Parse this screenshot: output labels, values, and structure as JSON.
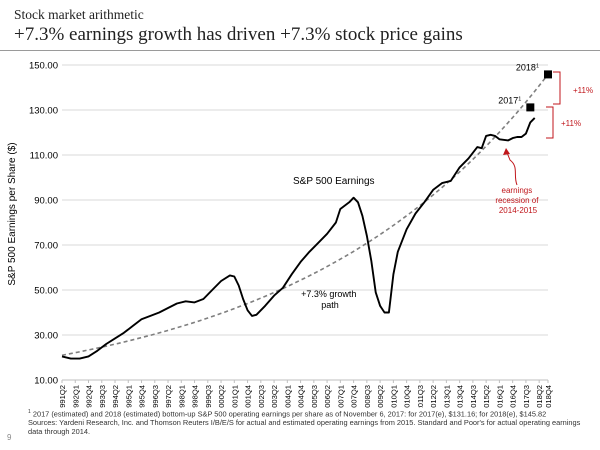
{
  "header": {
    "kicker": "Stock market arithmetic",
    "title": "+7.3% earnings growth has driven +7.3% stock price gains"
  },
  "chart_data": {
    "type": "line",
    "ylabel": "S&P 500 Earnings per Share  ($)",
    "ylim": [
      10,
      150
    ],
    "yticks": [
      10,
      30,
      50,
      70,
      90,
      110,
      130,
      150
    ],
    "ytick_labels": [
      "10.00",
      "30.00",
      "50.00",
      "70.00",
      "90.00",
      "110.00",
      "130.00",
      "150.00"
    ],
    "xticks": [
      "1991Q2",
      "1992Q1",
      "1992Q4",
      "1993Q3",
      "1994Q2",
      "1995Q1",
      "1995Q4",
      "1996Q3",
      "1997Q2",
      "1998Q1",
      "1998Q4",
      "1999Q3",
      "2000Q2",
      "2001Q1",
      "2001Q4",
      "2002Q3",
      "2003Q2",
      "2004Q1",
      "2004Q4",
      "2005Q3",
      "2006Q2",
      "2007Q1",
      "2007Q4",
      "2008Q3",
      "2009Q2",
      "2010Q1",
      "2010Q4",
      "2011Q3",
      "2012Q2",
      "2013Q1",
      "2013Q4",
      "2014Q3",
      "2015Q2",
      "2016Q1",
      "2016Q4",
      "2017Q3",
      "2018Q2",
      "2018Q4"
    ],
    "grid": "horizontal",
    "series": [
      {
        "name": "S&P 500 Earnings",
        "style": "solid",
        "color": "#000000",
        "points": [
          [
            "1991Q2",
            20.5
          ],
          [
            "1991Q4",
            19.5
          ],
          [
            "1992Q2",
            19.5
          ],
          [
            "1992Q4",
            20.5
          ],
          [
            "1993Q2",
            23
          ],
          [
            "1993Q4",
            26
          ],
          [
            "1994Q2",
            28.5
          ],
          [
            "1994Q4",
            31
          ],
          [
            "1995Q2",
            34
          ],
          [
            "1995Q4",
            37
          ],
          [
            "1996Q2",
            38.5
          ],
          [
            "1996Q4",
            40
          ],
          [
            "1997Q2",
            42
          ],
          [
            "1997Q4",
            44
          ],
          [
            "1998Q2",
            45
          ],
          [
            "1998Q4",
            44.5
          ],
          [
            "1999Q2",
            46
          ],
          [
            "1999Q4",
            50
          ],
          [
            "2000Q2",
            54
          ],
          [
            "2000Q4",
            56.5
          ],
          [
            "2001Q1",
            56
          ],
          [
            "2001Q2",
            52
          ],
          [
            "2001Q3",
            46
          ],
          [
            "2001Q4",
            41
          ],
          [
            "2002Q1",
            38.5
          ],
          [
            "2002Q2",
            39
          ],
          [
            "2002Q4",
            43
          ],
          [
            "2003Q2",
            47.5
          ],
          [
            "2003Q4",
            51
          ],
          [
            "2004Q2",
            57
          ],
          [
            "2004Q4",
            62.5
          ],
          [
            "2005Q2",
            67
          ],
          [
            "2005Q4",
            71
          ],
          [
            "2006Q2",
            75
          ],
          [
            "2006Q4",
            80
          ],
          [
            "2007Q1",
            86
          ],
          [
            "2007Q3",
            89
          ],
          [
            "2007Q4",
            91
          ],
          [
            "2008Q1",
            89
          ],
          [
            "2008Q2",
            83
          ],
          [
            "2008Q3",
            74
          ],
          [
            "2008Q4",
            63
          ],
          [
            "2009Q1",
            49
          ],
          [
            "2009Q2",
            43
          ],
          [
            "2009Q3",
            40
          ],
          [
            "2009Q4",
            40
          ],
          [
            "2010Q1",
            57
          ],
          [
            "2010Q2",
            67
          ],
          [
            "2010Q4",
            77
          ],
          [
            "2011Q2",
            84
          ],
          [
            "2011Q4",
            89
          ],
          [
            "2012Q2",
            94.5
          ],
          [
            "2012Q4",
            97.5
          ],
          [
            "2013Q2",
            98.5
          ],
          [
            "2013Q4",
            104.5
          ],
          [
            "2014Q2",
            108.5
          ],
          [
            "2014Q4",
            113.5
          ],
          [
            "2015Q1",
            113
          ],
          [
            "2015Q2",
            118.5
          ],
          [
            "2015Q3",
            119
          ],
          [
            "2015Q4",
            118.5
          ],
          [
            "2016Q1",
            117
          ],
          [
            "2016Q3",
            116.5
          ],
          [
            "2016Q4",
            117.5
          ],
          [
            "2017Q1",
            118
          ],
          [
            "2017Q2",
            118
          ],
          [
            "2017Q3",
            119.5
          ],
          [
            "2017Q4",
            124.5
          ],
          [
            "2018Q1",
            126.5
          ]
        ]
      },
      {
        "name": "+7.3% growth path",
        "style": "dashed",
        "color": "#7f7f7f",
        "start": [
          "1991Q2",
          21
        ],
        "end": [
          "2018Q4",
          145.82
        ],
        "points": [
          [
            "1991Q2",
            21
          ],
          [
            "1995Q2",
            29
          ],
          [
            "1999Q2",
            39
          ],
          [
            "2003Q2",
            52
          ],
          [
            "2007Q2",
            70
          ],
          [
            "2011Q2",
            95
          ],
          [
            "2015Q2",
            124
          ],
          [
            "2018Q4",
            145.82
          ]
        ]
      }
    ],
    "markers": [
      {
        "label": "2017",
        "sup": "1",
        "x": "2017Q4",
        "y": 131.16
      },
      {
        "label": "2018",
        "sup": "1",
        "x": "2018Q4",
        "y": 145.82
      }
    ],
    "annotations": [
      {
        "text": "S&P 500 Earnings",
        "color": "#000000"
      },
      {
        "text": "+7.3% growth path",
        "color": "#000000"
      },
      {
        "text": "earnings recession of 2014-2015",
        "color": "#c0161b"
      },
      {
        "text": "+11%",
        "color": "#c0161b"
      },
      {
        "text": "+11%",
        "color": "#c0161b"
      }
    ]
  },
  "footnote": {
    "marker": "1",
    "text1": "2017 (estimated) and 2018 (estimated) bottom-up S&P 500 operating earnings per share as of November 6, 2017: for 2017(e), $131.16; for 2018(e), $145.82",
    "text2": "Sources: Yardeni Research, Inc. and Thomson Reuters I/B/E/S for actual and estimated operating earnings from 2015. Standard and Poor's for actual operating earnings data through 2014."
  },
  "page_number": "9"
}
